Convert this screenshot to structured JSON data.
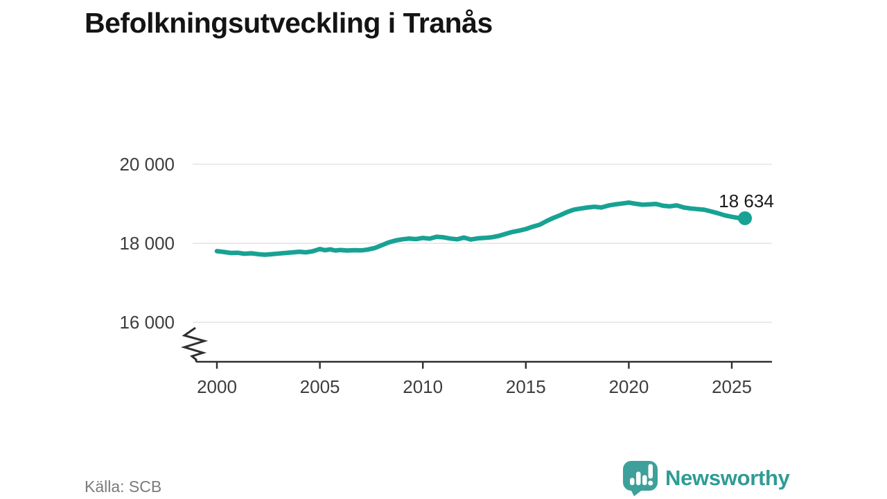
{
  "header": {
    "title": "Befolkningsutveckling i Tranås"
  },
  "footer": {
    "source_label": "Källa: SCB",
    "brand": {
      "name": "Newsworthy",
      "icon": "newsworthy-speech-bubble-chart-icon",
      "text_color": "#2e9c94",
      "icon_color": "#3ea09a"
    }
  },
  "chart_data": {
    "type": "line",
    "title": "Befolkningsutveckling i Tranås",
    "xlabel": "",
    "ylabel": "",
    "grid": "horizontal",
    "legend": "none",
    "axis_break_bottom_left": true,
    "xlim": [
      1999,
      2027
    ],
    "ylim_displayed": [
      15300,
      20500
    ],
    "line_color": "#17a294",
    "grid_color": "#e3e3e3",
    "axis_color": "#2f2f2f",
    "tick_label_color": "#3d3d3d",
    "x_ticks": [
      {
        "value": 2000,
        "label": "2000"
      },
      {
        "value": 2005,
        "label": "2005"
      },
      {
        "value": 2010,
        "label": "2010"
      },
      {
        "value": 2015,
        "label": "2015"
      },
      {
        "value": 2020,
        "label": "2020"
      },
      {
        "value": 2025,
        "label": "2025"
      }
    ],
    "y_ticks": [
      {
        "value": 20000,
        "label": "20 000"
      },
      {
        "value": 18000,
        "label": "18 000"
      },
      {
        "value": 16000,
        "label": "16 000"
      }
    ],
    "end_label": "18 634",
    "end_value": 18634,
    "series": [
      {
        "name": "Befolkning i Tranås",
        "x": [
          2000.0,
          2000.33,
          2000.67,
          2001.0,
          2001.33,
          2001.67,
          2002.0,
          2002.33,
          2002.67,
          2003.0,
          2003.33,
          2003.67,
          2004.0,
          2004.33,
          2004.67,
          2005.0,
          2005.25,
          2005.5,
          2005.75,
          2006.0,
          2006.33,
          2006.67,
          2007.0,
          2007.33,
          2007.67,
          2008.0,
          2008.33,
          2008.67,
          2009.0,
          2009.33,
          2009.67,
          2010.0,
          2010.33,
          2010.67,
          2011.0,
          2011.33,
          2011.67,
          2012.0,
          2012.33,
          2012.67,
          2013.0,
          2013.33,
          2013.67,
          2014.0,
          2014.33,
          2014.67,
          2015.0,
          2015.33,
          2015.67,
          2016.0,
          2016.33,
          2016.67,
          2017.0,
          2017.33,
          2017.67,
          2018.0,
          2018.33,
          2018.67,
          2019.0,
          2019.33,
          2019.67,
          2020.0,
          2020.33,
          2020.67,
          2021.0,
          2021.33,
          2021.67,
          2022.0,
          2022.33,
          2022.67,
          2023.0,
          2023.33,
          2023.67,
          2024.0,
          2024.33,
          2024.67,
          2025.0,
          2025.33,
          2025.64
        ],
        "y": [
          17800,
          17780,
          17755,
          17760,
          17735,
          17745,
          17725,
          17710,
          17725,
          17740,
          17755,
          17770,
          17785,
          17770,
          17800,
          17855,
          17825,
          17845,
          17815,
          17830,
          17815,
          17825,
          17820,
          17840,
          17880,
          17950,
          18020,
          18070,
          18100,
          18120,
          18105,
          18135,
          18115,
          18165,
          18150,
          18120,
          18100,
          18145,
          18095,
          18125,
          18135,
          18150,
          18185,
          18235,
          18285,
          18320,
          18360,
          18420,
          18470,
          18560,
          18640,
          18710,
          18790,
          18850,
          18880,
          18905,
          18925,
          18905,
          18955,
          18985,
          19005,
          19030,
          19000,
          18975,
          18985,
          18995,
          18950,
          18935,
          18960,
          18905,
          18880,
          18865,
          18850,
          18805,
          18760,
          18705,
          18670,
          18640,
          18634
        ]
      }
    ]
  }
}
